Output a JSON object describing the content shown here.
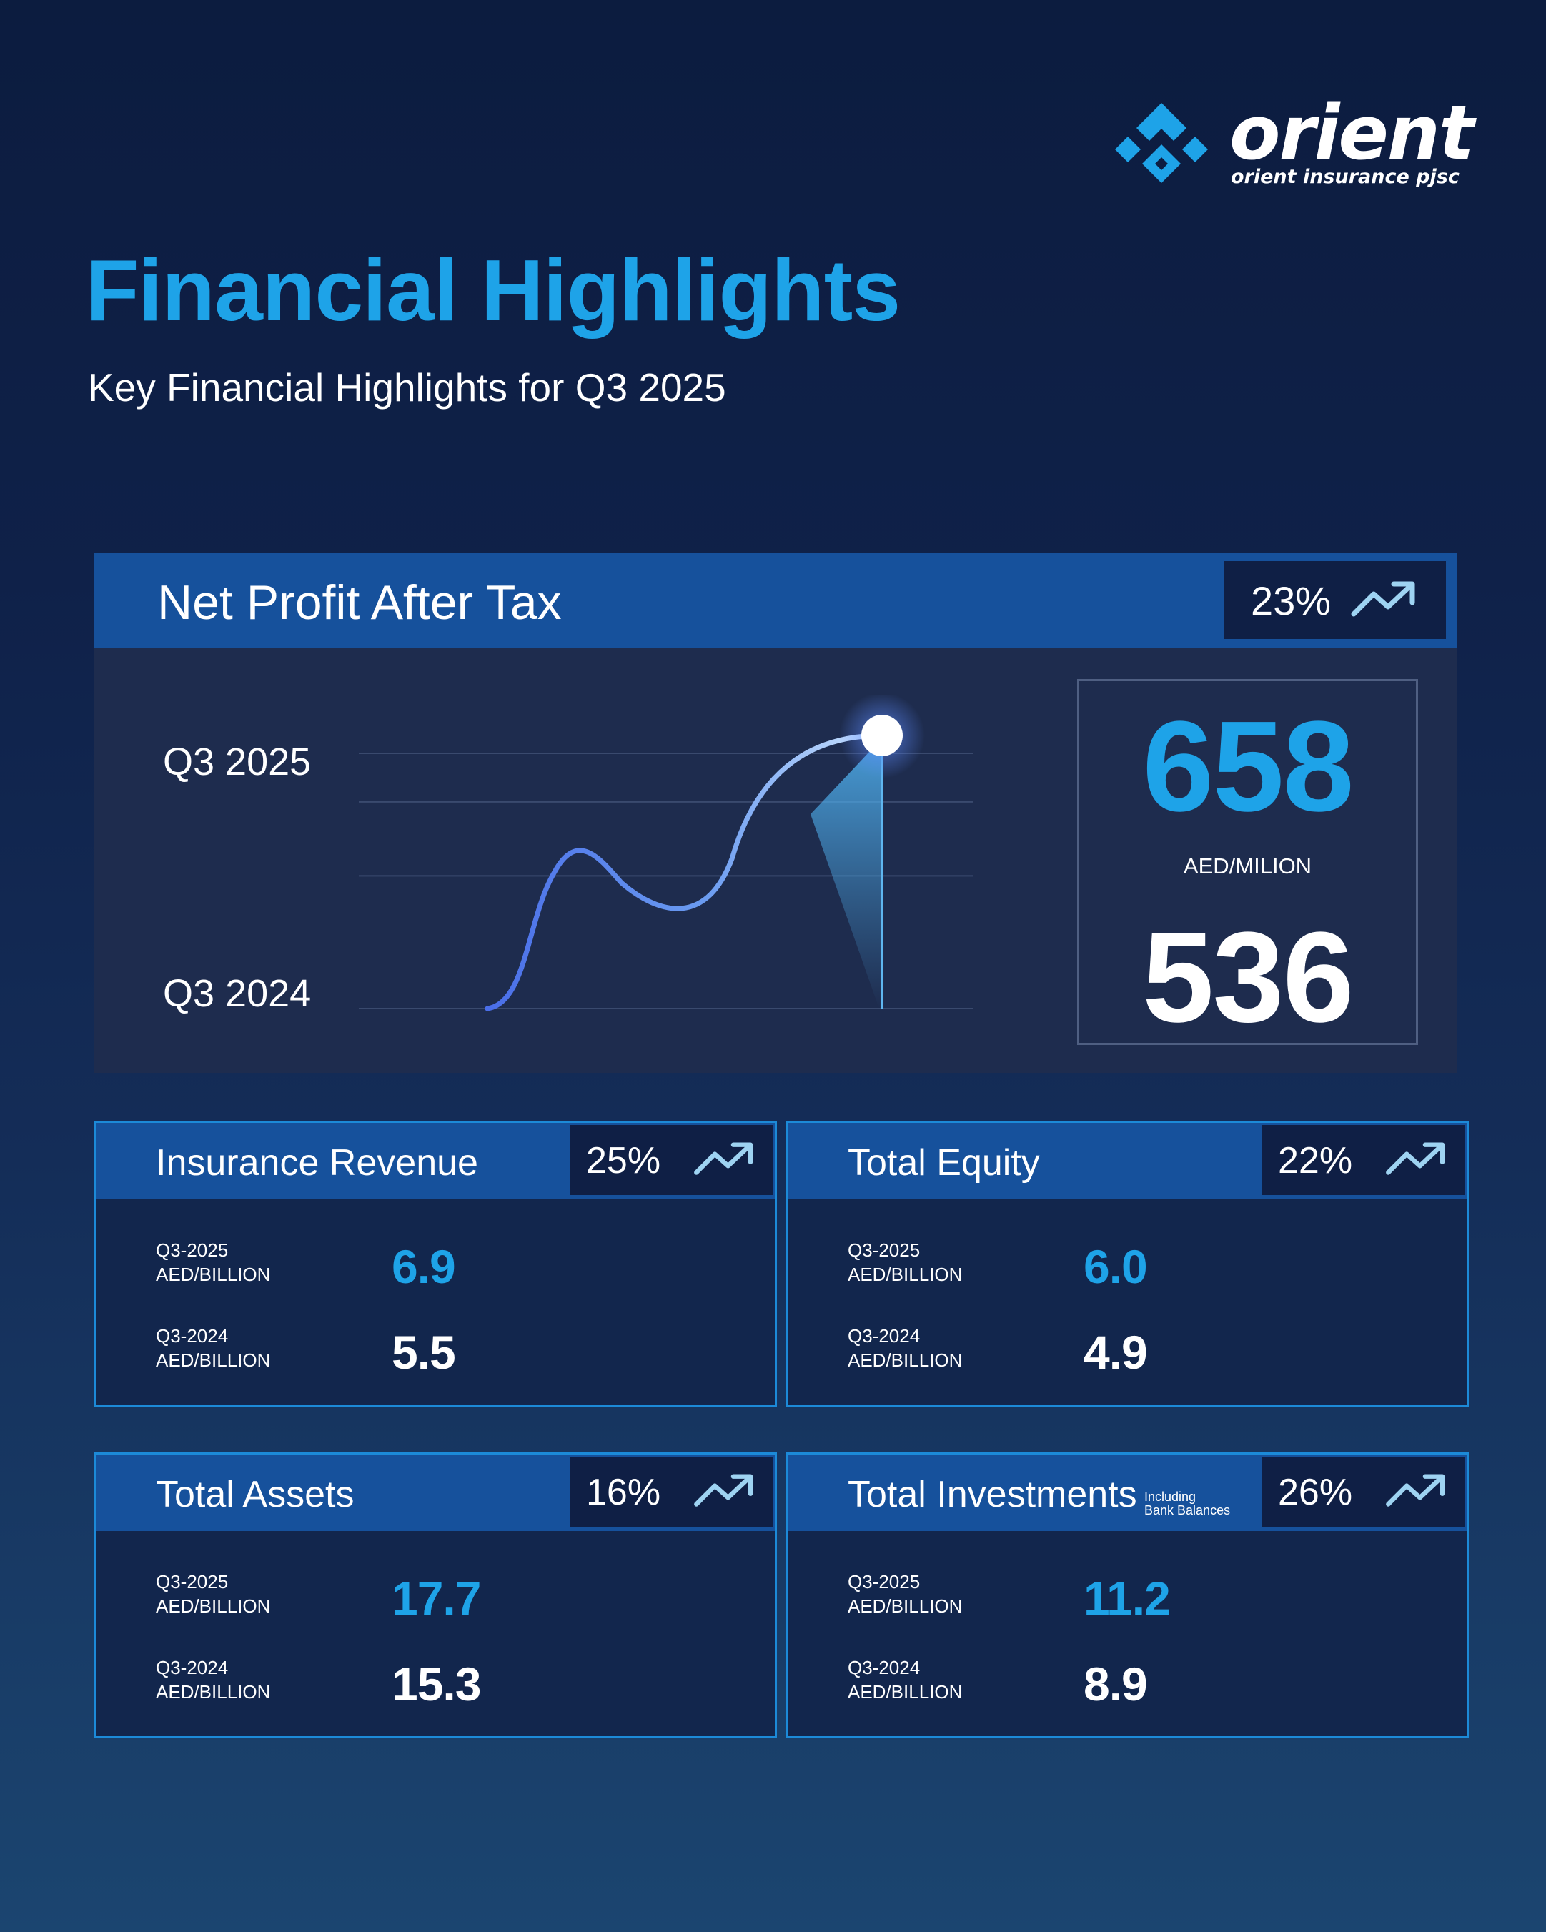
{
  "logo": {
    "wordmark": "orient",
    "tagline": "orient insurance pjsc",
    "icon": "orient-emblem-icon"
  },
  "title": "Financial Highlights",
  "subtitle": "Key Financial Highlights for Q3 2025",
  "colors": {
    "accent": "#1ea3e8",
    "header_band": "#16519c",
    "badge_bg": "#0f1f45",
    "panel_bg": "#1e2c4e",
    "card_border": "#1c8ad8"
  },
  "net_profit": {
    "title": "Net Profit After Tax",
    "change": "23%",
    "trend_icon": "trend-up-icon",
    "label_2025": "Q3 2025",
    "label_2024": "Q3 2024",
    "value_2025": "658",
    "unit": "AED/MILION",
    "value_2024": "536"
  },
  "cards": [
    {
      "title": "Insurance Revenue",
      "note": "",
      "change": "25%",
      "rows": [
        {
          "period": "Q3-2025",
          "unit": "AED/BILLION",
          "value": "6.9"
        },
        {
          "period": "Q3-2024",
          "unit": "AED/BILLION",
          "value": "5.5"
        }
      ]
    },
    {
      "title": "Total Equity",
      "note": "",
      "change": "22%",
      "rows": [
        {
          "period": "Q3-2025",
          "unit": "AED/BILLION",
          "value": "6.0"
        },
        {
          "period": "Q3-2024",
          "unit": "AED/BILLION",
          "value": "4.9"
        }
      ]
    },
    {
      "title": "Total Assets",
      "note": "",
      "change": "16%",
      "rows": [
        {
          "period": "Q3-2025",
          "unit": "AED/BILLION",
          "value": "17.7"
        },
        {
          "period": "Q3-2024",
          "unit": "AED/BILLION",
          "value": "15.3"
        }
      ]
    },
    {
      "title": "Total Investments",
      "note_line1": "Including",
      "note_line2": "Bank Balances",
      "change": "26%",
      "rows": [
        {
          "period": "Q3-2025",
          "unit": "AED/BILLION",
          "value": "11.2"
        },
        {
          "period": "Q3-2024",
          "unit": "AED/BILLION",
          "value": "8.9"
        }
      ]
    }
  ],
  "chart_data": [
    {
      "type": "line",
      "title": "Net Profit After Tax",
      "categories": [
        "Q3 2024",
        "Q3 2025"
      ],
      "values": [
        536,
        658
      ],
      "ylabel": "AED/MILION",
      "grid": true
    },
    {
      "type": "table",
      "title": "Insurance Revenue",
      "categories": [
        "Q3-2025",
        "Q3-2024"
      ],
      "values": [
        6.9,
        5.5
      ],
      "ylabel": "AED/BILLION"
    },
    {
      "type": "table",
      "title": "Total Equity",
      "categories": [
        "Q3-2025",
        "Q3-2024"
      ],
      "values": [
        6.0,
        4.9
      ],
      "ylabel": "AED/BILLION"
    },
    {
      "type": "table",
      "title": "Total Assets",
      "categories": [
        "Q3-2025",
        "Q3-2024"
      ],
      "values": [
        17.7,
        15.3
      ],
      "ylabel": "AED/BILLION"
    },
    {
      "type": "table",
      "title": "Total Investments",
      "categories": [
        "Q3-2025",
        "Q3-2024"
      ],
      "values": [
        11.2,
        8.9
      ],
      "ylabel": "AED/BILLION"
    }
  ]
}
